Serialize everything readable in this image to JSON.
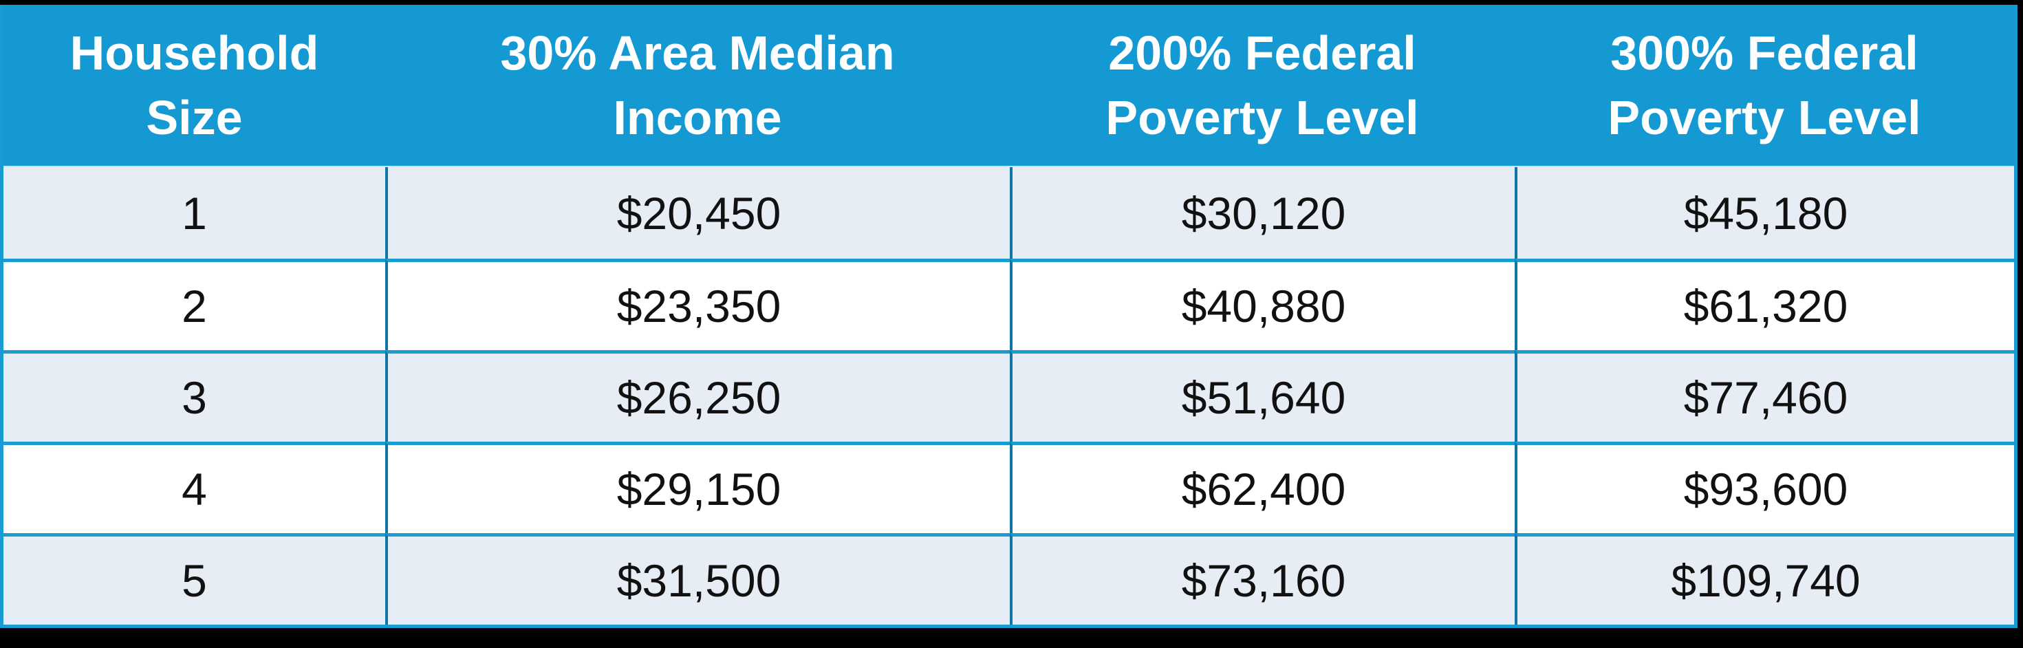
{
  "chart_data": {
    "type": "table",
    "columns": [
      "Household Size",
      "30% Area Median Income",
      "200% Federal Poverty Level",
      "300% Federal Poverty Level"
    ],
    "rows": [
      [
        "1",
        "$20,450",
        "$30,120",
        "$45,180"
      ],
      [
        "2",
        "$23,350",
        "$40,880",
        "$61,320"
      ],
      [
        "3",
        "$26,250",
        "$51,640",
        "$77,460"
      ],
      [
        "4",
        "$29,150",
        "$62,400",
        "$93,600"
      ],
      [
        "5",
        "$31,500",
        "$73,160",
        "$109,740"
      ]
    ]
  },
  "table": {
    "header_lines": [
      [
        "Household",
        "Size"
      ],
      [
        "30% Area Median",
        "Income"
      ],
      [
        "200% Federal",
        "Poverty Level"
      ],
      [
        "300% Federal",
        "Poverty Level"
      ]
    ]
  },
  "colors": {
    "canvas_bg": "#000000",
    "header_bg": "#1499D3",
    "header_text": "#FFFFFF",
    "row_alt_bg": "#E7EDF5",
    "row_bg": "#FFFFFF",
    "outer_border": "#189BD3",
    "inner_horizontal_border": "#1A9BD3",
    "inner_vertical_border": "#0E76A4",
    "body_text": "#111111"
  }
}
